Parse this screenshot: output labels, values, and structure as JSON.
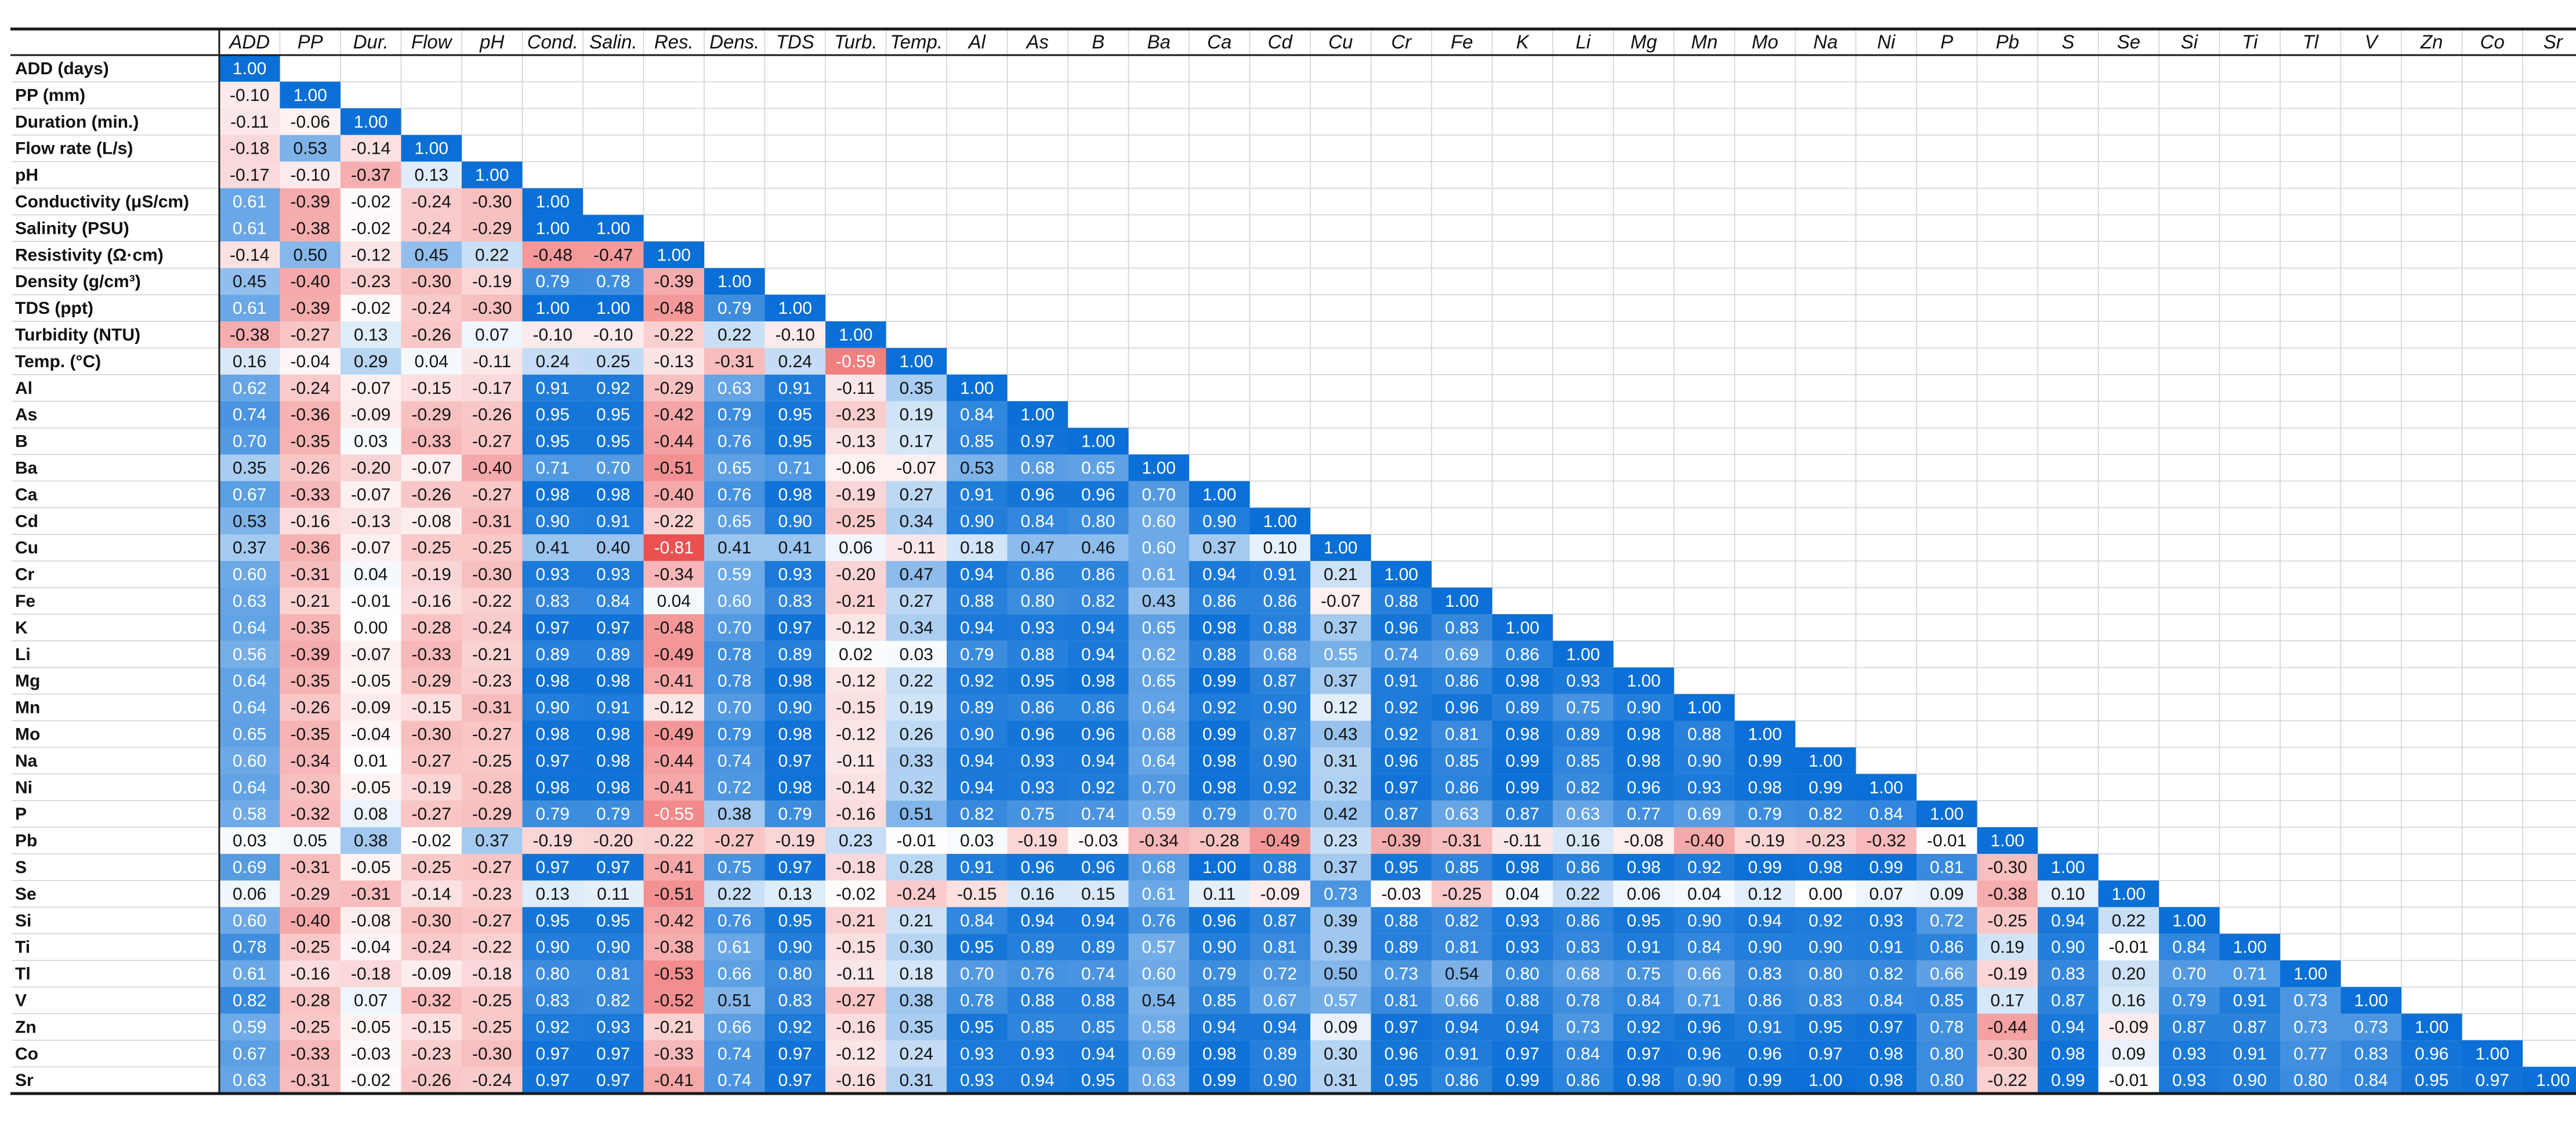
{
  "chart_data": {
    "type": "heatmap",
    "title": "",
    "column_labels": [
      "ADD",
      "PP",
      "Dur.",
      "Flow",
      "pH",
      "Cond.",
      "Salin.",
      "Res.",
      "Dens.",
      "TDS",
      "Turb.",
      "Temp.",
      "Al",
      "As",
      "B",
      "Ba",
      "Ca",
      "Cd",
      "Cu",
      "Cr",
      "Fe",
      "K",
      "Li",
      "Mg",
      "Mn",
      "Mo",
      "Na",
      "Ni",
      "P",
      "Pb",
      "S",
      "Se",
      "Si",
      "Ti",
      "Tl",
      "V",
      "Zn",
      "Co",
      "Sr"
    ],
    "row_labels": [
      "ADD (days)",
      "PP (mm)",
      "Duration (min.)",
      "Flow rate (L/s)",
      "pH",
      "Conductivity (μS/cm)",
      "Salinity (PSU)",
      "Resistivity (Ω·cm)",
      "Density (g/cm³)",
      "TDS (ppt)",
      "Turbidity (NTU)",
      "Temp. (°C)",
      "Al",
      "As",
      "B",
      "Ba",
      "Ca",
      "Cd",
      "Cu",
      "Cr",
      "Fe",
      "K",
      "Li",
      "Mg",
      "Mn",
      "Mo",
      "Na",
      "Ni",
      "P",
      "Pb",
      "S",
      "Se",
      "Si",
      "Ti",
      "Tl",
      "V",
      "Zn",
      "Co",
      "Sr"
    ],
    "value_range": [
      -1,
      1
    ],
    "colors": {
      "negative": "#e8282a",
      "zero": "#ffffff",
      "positive": "#0a6fd6",
      "grid": "#d0d0d0",
      "border": "#1a1a1a"
    },
    "values": [
      [
        1.0
      ],
      [
        -0.1,
        1.0
      ],
      [
        -0.11,
        -0.06,
        1.0
      ],
      [
        -0.18,
        0.53,
        -0.14,
        1.0
      ],
      [
        -0.17,
        -0.1,
        -0.37,
        0.13,
        1.0
      ],
      [
        0.61,
        -0.39,
        -0.02,
        -0.24,
        -0.3,
        1.0
      ],
      [
        0.61,
        -0.38,
        -0.02,
        -0.24,
        -0.29,
        1.0,
        1.0
      ],
      [
        -0.14,
        0.5,
        -0.12,
        0.45,
        0.22,
        -0.48,
        -0.47,
        1.0
      ],
      [
        0.45,
        -0.4,
        -0.23,
        -0.3,
        -0.19,
        0.79,
        0.78,
        -0.39,
        1.0
      ],
      [
        0.61,
        -0.39,
        -0.02,
        -0.24,
        -0.3,
        1.0,
        1.0,
        -0.48,
        0.79,
        1.0
      ],
      [
        -0.38,
        -0.27,
        0.13,
        -0.26,
        0.07,
        -0.1,
        -0.1,
        -0.22,
        0.22,
        -0.1,
        1.0
      ],
      [
        0.16,
        -0.04,
        0.29,
        0.04,
        -0.11,
        0.24,
        0.25,
        -0.13,
        -0.31,
        0.24,
        -0.59,
        1.0
      ],
      [
        0.62,
        -0.24,
        -0.07,
        -0.15,
        -0.17,
        0.91,
        0.92,
        -0.29,
        0.63,
        0.91,
        -0.11,
        0.35,
        1.0
      ],
      [
        0.74,
        -0.36,
        -0.09,
        -0.29,
        -0.26,
        0.95,
        0.95,
        -0.42,
        0.79,
        0.95,
        -0.23,
        0.19,
        0.84,
        1.0
      ],
      [
        0.7,
        -0.35,
        0.03,
        -0.33,
        -0.27,
        0.95,
        0.95,
        -0.44,
        0.76,
        0.95,
        -0.13,
        0.17,
        0.85,
        0.97,
        1.0
      ],
      [
        0.35,
        -0.26,
        -0.2,
        -0.07,
        -0.4,
        0.71,
        0.7,
        -0.51,
        0.65,
        0.71,
        -0.06,
        -0.07,
        0.53,
        0.68,
        0.65,
        1.0
      ],
      [
        0.67,
        -0.33,
        -0.07,
        -0.26,
        -0.27,
        0.98,
        0.98,
        -0.4,
        0.76,
        0.98,
        -0.19,
        0.27,
        0.91,
        0.96,
        0.96,
        0.7,
        1.0
      ],
      [
        0.53,
        -0.16,
        -0.13,
        -0.08,
        -0.31,
        0.9,
        0.91,
        -0.22,
        0.65,
        0.9,
        -0.25,
        0.34,
        0.9,
        0.84,
        0.8,
        0.6,
        0.9,
        1.0
      ],
      [
        0.37,
        -0.36,
        -0.07,
        -0.25,
        -0.25,
        0.41,
        0.4,
        -0.81,
        0.41,
        0.41,
        0.06,
        -0.11,
        0.18,
        0.47,
        0.46,
        0.6,
        0.37,
        0.1,
        1.0
      ],
      [
        0.6,
        -0.31,
        0.04,
        -0.19,
        -0.3,
        0.93,
        0.93,
        -0.34,
        0.59,
        0.93,
        -0.2,
        0.47,
        0.94,
        0.86,
        0.86,
        0.61,
        0.94,
        0.91,
        0.21,
        1.0
      ],
      [
        0.63,
        -0.21,
        -0.01,
        -0.16,
        -0.22,
        0.83,
        0.84,
        0.04,
        0.6,
        0.83,
        -0.21,
        0.27,
        0.88,
        0.8,
        0.82,
        0.43,
        0.86,
        0.86,
        -0.07,
        0.88,
        1.0
      ],
      [
        0.64,
        -0.35,
        0.0,
        -0.28,
        -0.24,
        0.97,
        0.97,
        -0.48,
        0.7,
        0.97,
        -0.12,
        0.34,
        0.94,
        0.93,
        0.94,
        0.65,
        0.98,
        0.88,
        0.37,
        0.96,
        0.83,
        1.0
      ],
      [
        0.56,
        -0.39,
        -0.07,
        -0.33,
        -0.21,
        0.89,
        0.89,
        -0.49,
        0.78,
        0.89,
        0.02,
        0.03,
        0.79,
        0.88,
        0.94,
        0.62,
        0.88,
        0.68,
        0.55,
        0.74,
        0.69,
        0.86,
        1.0
      ],
      [
        0.64,
        -0.35,
        -0.05,
        -0.29,
        -0.23,
        0.98,
        0.98,
        -0.41,
        0.78,
        0.98,
        -0.12,
        0.22,
        0.92,
        0.95,
        0.98,
        0.65,
        0.99,
        0.87,
        0.37,
        0.91,
        0.86,
        0.98,
        0.93,
        1.0
      ],
      [
        0.64,
        -0.26,
        -0.09,
        -0.15,
        -0.31,
        0.9,
        0.91,
        -0.12,
        0.7,
        0.9,
        -0.15,
        0.19,
        0.89,
        0.86,
        0.86,
        0.64,
        0.92,
        0.9,
        0.12,
        0.92,
        0.96,
        0.89,
        0.75,
        0.9,
        1.0
      ],
      [
        0.65,
        -0.35,
        -0.04,
        -0.3,
        -0.27,
        0.98,
        0.98,
        -0.49,
        0.79,
        0.98,
        -0.12,
        0.26,
        0.9,
        0.96,
        0.96,
        0.68,
        0.99,
        0.87,
        0.43,
        0.92,
        0.81,
        0.98,
        0.89,
        0.98,
        0.88,
        1.0
      ],
      [
        0.6,
        -0.34,
        0.01,
        -0.27,
        -0.25,
        0.97,
        0.98,
        -0.44,
        0.74,
        0.97,
        -0.11,
        0.33,
        0.94,
        0.93,
        0.94,
        0.64,
        0.98,
        0.9,
        0.31,
        0.96,
        0.85,
        0.99,
        0.85,
        0.98,
        0.9,
        0.99,
        1.0
      ],
      [
        0.64,
        -0.3,
        -0.05,
        -0.19,
        -0.28,
        0.98,
        0.98,
        -0.41,
        0.72,
        0.98,
        -0.14,
        0.32,
        0.94,
        0.93,
        0.92,
        0.7,
        0.98,
        0.92,
        0.32,
        0.97,
        0.86,
        0.99,
        0.82,
        0.96,
        0.93,
        0.98,
        0.99,
        1.0
      ],
      [
        0.58,
        -0.32,
        0.08,
        -0.27,
        -0.29,
        0.79,
        0.79,
        -0.55,
        0.38,
        0.79,
        -0.16,
        0.51,
        0.82,
        0.75,
        0.74,
        0.59,
        0.79,
        0.7,
        0.42,
        0.87,
        0.63,
        0.87,
        0.63,
        0.77,
        0.69,
        0.79,
        0.82,
        0.84,
        1.0
      ],
      [
        0.03,
        0.05,
        0.38,
        -0.02,
        0.37,
        -0.19,
        -0.2,
        -0.22,
        -0.27,
        -0.19,
        0.23,
        -0.01,
        0.03,
        -0.19,
        -0.03,
        -0.34,
        -0.28,
        -0.49,
        0.23,
        -0.39,
        -0.31,
        -0.11,
        0.16,
        -0.08,
        -0.4,
        -0.19,
        -0.23,
        -0.32,
        -0.01,
        1.0
      ],
      [
        0.69,
        -0.31,
        -0.05,
        -0.25,
        -0.27,
        0.97,
        0.97,
        -0.41,
        0.75,
        0.97,
        -0.18,
        0.28,
        0.91,
        0.96,
        0.96,
        0.68,
        1.0,
        0.88,
        0.37,
        0.95,
        0.85,
        0.98,
        0.86,
        0.98,
        0.92,
        0.99,
        0.98,
        0.99,
        0.81,
        -0.3,
        1.0
      ],
      [
        0.06,
        -0.29,
        -0.31,
        -0.14,
        -0.23,
        0.13,
        0.11,
        -0.51,
        0.22,
        0.13,
        -0.02,
        -0.24,
        -0.15,
        0.16,
        0.15,
        0.61,
        0.11,
        -0.09,
        0.73,
        -0.03,
        -0.25,
        0.04,
        0.22,
        0.06,
        0.04,
        0.12,
        0.0,
        0.07,
        0.09,
        -0.38,
        0.1,
        1.0
      ],
      [
        0.6,
        -0.4,
        -0.08,
        -0.3,
        -0.27,
        0.95,
        0.95,
        -0.42,
        0.76,
        0.95,
        -0.21,
        0.21,
        0.84,
        0.94,
        0.94,
        0.76,
        0.96,
        0.87,
        0.39,
        0.88,
        0.82,
        0.93,
        0.86,
        0.95,
        0.9,
        0.94,
        0.92,
        0.93,
        0.72,
        -0.25,
        0.94,
        0.22,
        1.0
      ],
      [
        0.78,
        -0.25,
        -0.04,
        -0.24,
        -0.22,
        0.9,
        0.9,
        -0.38,
        0.61,
        0.9,
        -0.15,
        0.3,
        0.95,
        0.89,
        0.89,
        0.57,
        0.9,
        0.81,
        0.39,
        0.89,
        0.81,
        0.93,
        0.83,
        0.91,
        0.84,
        0.9,
        0.9,
        0.91,
        0.86,
        0.19,
        0.9,
        -0.01,
        0.84,
        1.0
      ],
      [
        0.61,
        -0.16,
        -0.18,
        -0.09,
        -0.18,
        0.8,
        0.81,
        -0.53,
        0.66,
        0.8,
        -0.11,
        0.18,
        0.7,
        0.76,
        0.74,
        0.6,
        0.79,
        0.72,
        0.5,
        0.73,
        0.54,
        0.8,
        0.68,
        0.75,
        0.66,
        0.83,
        0.8,
        0.82,
        0.66,
        -0.19,
        0.83,
        0.2,
        0.7,
        0.71,
        1.0
      ],
      [
        0.82,
        -0.28,
        0.07,
        -0.32,
        -0.25,
        0.83,
        0.82,
        -0.52,
        0.51,
        0.83,
        -0.27,
        0.38,
        0.78,
        0.88,
        0.88,
        0.54,
        0.85,
        0.67,
        0.57,
        0.81,
        0.66,
        0.88,
        0.78,
        0.84,
        0.71,
        0.86,
        0.83,
        0.84,
        0.85,
        0.17,
        0.87,
        0.16,
        0.79,
        0.91,
        0.73,
        1.0
      ],
      [
        0.59,
        -0.25,
        -0.05,
        -0.15,
        -0.25,
        0.92,
        0.93,
        -0.21,
        0.66,
        0.92,
        -0.16,
        0.35,
        0.95,
        0.85,
        0.85,
        0.58,
        0.94,
        0.94,
        0.09,
        0.97,
        0.94,
        0.94,
        0.73,
        0.92,
        0.96,
        0.91,
        0.95,
        0.97,
        0.78,
        -0.44,
        0.94,
        -0.09,
        0.87,
        0.87,
        0.73,
        0.73,
        1.0
      ],
      [
        0.67,
        -0.33,
        -0.03,
        -0.23,
        -0.3,
        0.97,
        0.97,
        -0.33,
        0.74,
        0.97,
        -0.12,
        0.24,
        0.93,
        0.93,
        0.94,
        0.69,
        0.98,
        0.89,
        0.3,
        0.96,
        0.91,
        0.97,
        0.84,
        0.97,
        0.96,
        0.96,
        0.97,
        0.98,
        0.8,
        -0.3,
        0.98,
        0.09,
        0.93,
        0.91,
        0.77,
        0.83,
        0.96,
        1.0
      ],
      [
        0.63,
        -0.31,
        -0.02,
        -0.26,
        -0.24,
        0.97,
        0.97,
        -0.41,
        0.74,
        0.97,
        -0.16,
        0.31,
        0.93,
        0.94,
        0.95,
        0.63,
        0.99,
        0.9,
        0.31,
        0.95,
        0.86,
        0.99,
        0.86,
        0.98,
        0.9,
        0.99,
        1.0,
        0.98,
        0.8,
        -0.22,
        0.99,
        -0.01,
        0.93,
        0.9,
        0.8,
        0.84,
        0.95,
        0.97,
        1.0
      ]
    ]
  }
}
